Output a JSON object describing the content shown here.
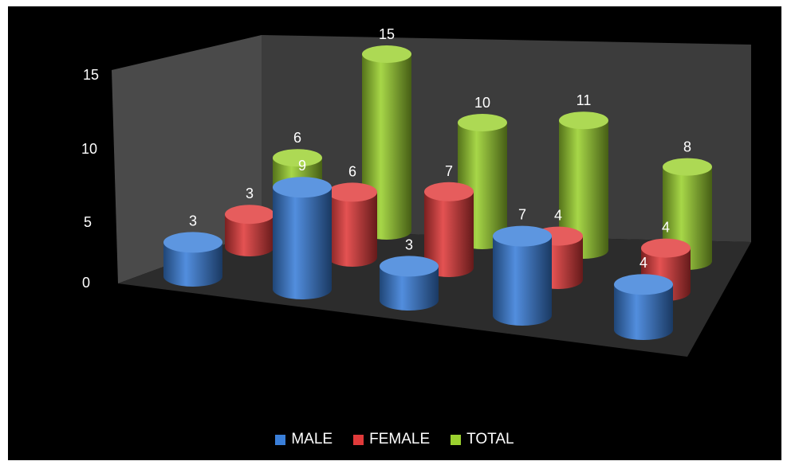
{
  "chart_data": {
    "type": "bar",
    "style": "3d-cylinder",
    "categories": [
      "",
      "",
      "",
      "",
      ""
    ],
    "series": [
      {
        "name": "MALE",
        "color": "#3a7fd9",
        "values": [
          3,
          9,
          3,
          7,
          4
        ]
      },
      {
        "name": "FEMALE",
        "color": "#e03a3a",
        "values": [
          3,
          6,
          7,
          4,
          4
        ]
      },
      {
        "name": "TOTAL",
        "color": "#9bd12f",
        "values": [
          6,
          15,
          10,
          11,
          8
        ]
      }
    ],
    "yticks": [
      "0",
      "5",
      "10",
      "15"
    ],
    "ylim": [
      0,
      15
    ],
    "legend_position": "bottom",
    "background": "#000000"
  }
}
